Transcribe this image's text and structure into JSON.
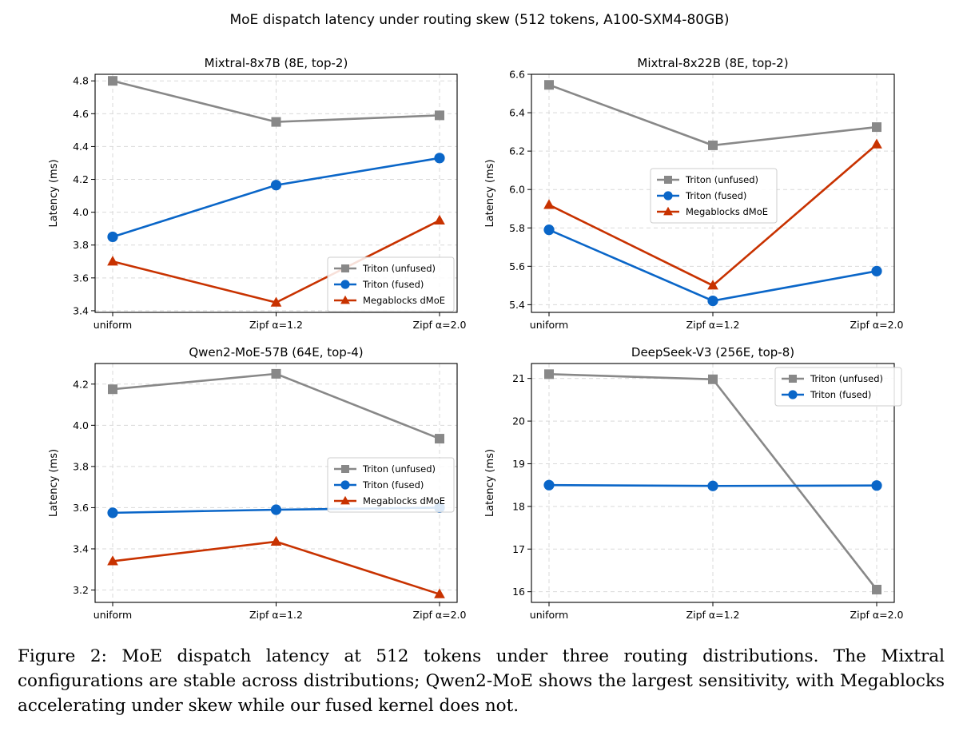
{
  "figure": {
    "suptitle": "MoE dispatch latency under routing skew (512 tokens, A100-SXM4-80GB)",
    "caption": "Figure 2: MoE dispatch latency at 512 tokens under three routing distributions. The Mixtral configurations are stable across distributions; Qwen2-MoE shows the largest sensitivity, with Megablocks accelerating under skew while our fused kernel does not."
  },
  "colors": {
    "triton_unfused": "#888888",
    "triton_fused": "#0a66c8",
    "megablocks": "#c83200"
  },
  "chart_data": [
    {
      "type": "line",
      "title": "Mixtral-8x7B (8E, top-2)",
      "ylabel": "Latency (ms)",
      "xlabel": "",
      "categories": [
        "uniform",
        "Zipf α=1.2",
        "Zipf α=2.0"
      ],
      "ylim": [
        3.39,
        4.84
      ],
      "yticks": [
        3.4,
        3.6,
        3.8,
        4.0,
        4.2,
        4.4,
        4.6,
        4.8
      ],
      "ytick_labels": [
        "3.4",
        "3.6",
        "3.8",
        "4.0",
        "4.2",
        "4.4",
        "4.6",
        "4.8"
      ],
      "grid": true,
      "legend_position": "lower-right",
      "series": [
        {
          "name": "Triton (unfused)",
          "values": [
            4.8,
            4.55,
            4.59
          ],
          "marker": "square",
          "color_key": "triton_unfused"
        },
        {
          "name": "Triton (fused)",
          "values": [
            3.85,
            4.165,
            4.33
          ],
          "marker": "circle",
          "color_key": "triton_fused"
        },
        {
          "name": "Megablocks dMoE",
          "values": [
            3.7,
            3.45,
            3.95
          ],
          "marker": "triangle",
          "color_key": "megablocks"
        }
      ]
    },
    {
      "type": "line",
      "title": "Mixtral-8x22B (8E, top-2)",
      "ylabel": "Latency (ms)",
      "xlabel": "",
      "categories": [
        "uniform",
        "Zipf α=1.2",
        "Zipf α=2.0"
      ],
      "ylim": [
        5.36,
        6.6
      ],
      "yticks": [
        5.4,
        5.6,
        5.8,
        6.0,
        6.2,
        6.4,
        6.6
      ],
      "ytick_labels": [
        "5.4",
        "5.6",
        "5.8",
        "6.0",
        "6.2",
        "6.4",
        "6.6"
      ],
      "grid": true,
      "legend_position": "center",
      "series": [
        {
          "name": "Triton (unfused)",
          "values": [
            6.545,
            6.23,
            6.325
          ],
          "marker": "square",
          "color_key": "triton_unfused"
        },
        {
          "name": "Triton (fused)",
          "values": [
            5.79,
            5.42,
            5.575
          ],
          "marker": "circle",
          "color_key": "triton_fused"
        },
        {
          "name": "Megablocks dMoE",
          "values": [
            5.92,
            5.5,
            6.235
          ],
          "marker": "triangle",
          "color_key": "megablocks"
        }
      ]
    },
    {
      "type": "line",
      "title": "Qwen2-MoE-57B (64E, top-4)",
      "ylabel": "Latency (ms)",
      "xlabel": "",
      "categories": [
        "uniform",
        "Zipf α=1.2",
        "Zipf α=2.0"
      ],
      "ylim": [
        3.14,
        4.3
      ],
      "yticks": [
        3.2,
        3.4,
        3.6,
        3.8,
        4.0,
        4.2
      ],
      "ytick_labels": [
        "3.2",
        "3.4",
        "3.6",
        "3.8",
        "4.0",
        "4.2"
      ],
      "grid": true,
      "legend_position": "center-right",
      "series": [
        {
          "name": "Triton (unfused)",
          "values": [
            4.175,
            4.25,
            3.935
          ],
          "marker": "square",
          "color_key": "triton_unfused"
        },
        {
          "name": "Triton (fused)",
          "values": [
            3.575,
            3.59,
            3.6
          ],
          "marker": "circle",
          "color_key": "triton_fused"
        },
        {
          "name": "Megablocks dMoE",
          "values": [
            3.34,
            3.435,
            3.18
          ],
          "marker": "triangle",
          "color_key": "megablocks"
        }
      ]
    },
    {
      "type": "line",
      "title": "DeepSeek-V3 (256E, top-8)",
      "ylabel": "Latency (ms)",
      "xlabel": "",
      "categories": [
        "uniform",
        "Zipf α=1.2",
        "Zipf α=2.0"
      ],
      "ylim": [
        15.75,
        21.35
      ],
      "yticks": [
        16,
        17,
        18,
        19,
        20,
        21
      ],
      "ytick_labels": [
        "16",
        "17",
        "18",
        "19",
        "20",
        "21"
      ],
      "grid": true,
      "legend_position": "top-right",
      "series": [
        {
          "name": "Triton (unfused)",
          "values": [
            21.1,
            20.98,
            16.05
          ],
          "marker": "square",
          "color_key": "triton_unfused"
        },
        {
          "name": "Triton (fused)",
          "values": [
            18.5,
            18.48,
            18.49
          ],
          "marker": "circle",
          "color_key": "triton_fused"
        }
      ]
    }
  ]
}
